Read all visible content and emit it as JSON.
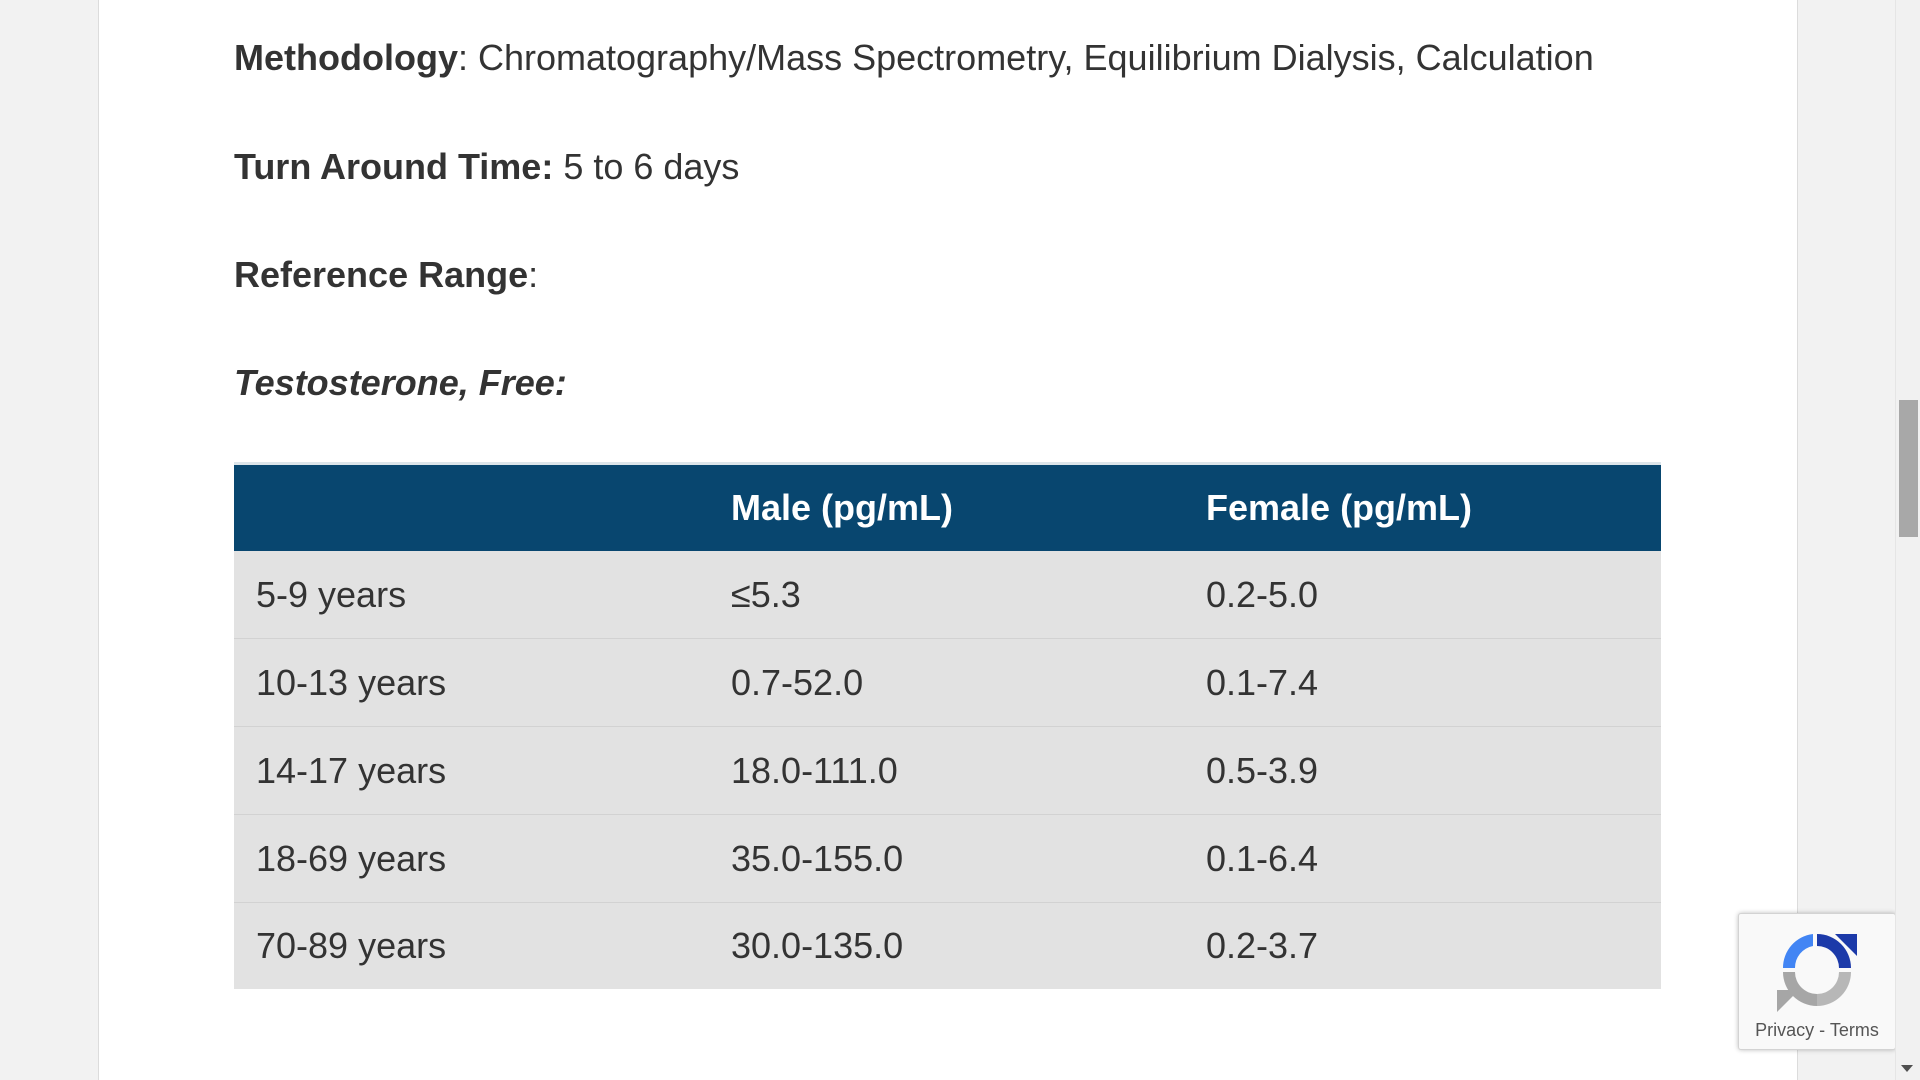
{
  "info": {
    "methodology_label": "Methodology",
    "methodology_value": ": Chromatography/Mass Spectrometry, Equilibrium Dialysis, Calculation",
    "tat_label": "Turn Around Time:",
    "tat_value": " 5 to 6 days",
    "reference_label": "Reference Range",
    "reference_colon": ":",
    "subheading": "Testosterone, Free:"
  },
  "table": {
    "headers": [
      "",
      "Male (pg/mL)",
      "Female (pg/mL)"
    ],
    "rows": [
      [
        "5-9 years",
        "≤5.3",
        "0.2-5.0"
      ],
      [
        "10-13 years",
        "0.7-52.0",
        "0.1-7.4"
      ],
      [
        "14-17 years",
        "18.0-111.0",
        "0.5-3.9"
      ],
      [
        "18-69 years",
        "35.0-155.0",
        "0.1-6.4"
      ],
      [
        "70-89 years",
        "30.0-135.0",
        "0.2-3.7"
      ]
    ]
  },
  "recaptcha": {
    "privacy": "Privacy",
    "separator": "-",
    "terms": "Terms"
  },
  "colors": {
    "table_header_bg": "#08466f",
    "table_row_bg": "#e2e2e2",
    "text": "#333333"
  },
  "icons": {
    "recaptcha": "recaptcha-logo-icon"
  }
}
